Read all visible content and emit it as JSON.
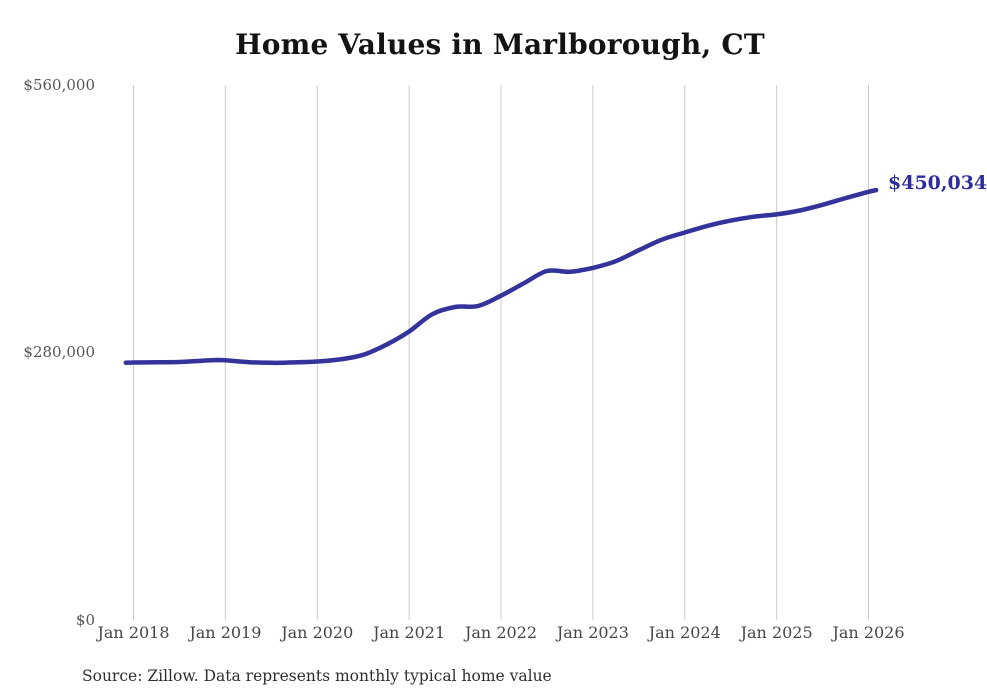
{
  "page": {
    "background_color": "#ffffff"
  },
  "chart_data": {
    "type": "line",
    "title": "Home Values in Marlborough, CT",
    "source_note": "Source: Zillow. Data represents monthly typical home value",
    "grid": "vertical-only",
    "grid_color": "#cbcbcb",
    "legend_position": "none",
    "y_axis": {
      "range": [
        0,
        560000
      ],
      "ticks": [
        {
          "label": "$0",
          "value": 0
        },
        {
          "label": "$280,000",
          "value": 280000
        },
        {
          "label": "$560,000",
          "value": 560000
        }
      ]
    },
    "x_axis": {
      "ticks": [
        "Jan 2018",
        "Jan 2019",
        "Jan 2020",
        "Jan 2021",
        "Jan 2022",
        "Jan 2023",
        "Jan 2024",
        "Jan 2025",
        "Jan 2026"
      ]
    },
    "end_label": "$450,034",
    "latest_value": 450034,
    "series": [
      {
        "name": "Typical home value",
        "color": "#33339b",
        "points": [
          {
            "month": "2017-12",
            "value": 269300
          },
          {
            "month": "2018-01",
            "value": 269500
          },
          {
            "month": "2018-04",
            "value": 269700
          },
          {
            "month": "2018-07",
            "value": 270100
          },
          {
            "month": "2018-10",
            "value": 271400
          },
          {
            "month": "2018-12",
            "value": 272100
          },
          {
            "month": "2019-01",
            "value": 271800
          },
          {
            "month": "2019-04",
            "value": 269900
          },
          {
            "month": "2019-07",
            "value": 269200
          },
          {
            "month": "2019-10",
            "value": 269600
          },
          {
            "month": "2020-01",
            "value": 270600
          },
          {
            "month": "2020-04",
            "value": 272800
          },
          {
            "month": "2020-07",
            "value": 277600
          },
          {
            "month": "2020-10",
            "value": 288100
          },
          {
            "month": "2021-01",
            "value": 302000
          },
          {
            "month": "2021-04",
            "value": 320000
          },
          {
            "month": "2021-07",
            "value": 327600
          },
          {
            "month": "2021-10",
            "value": 328700
          },
          {
            "month": "2022-01",
            "value": 339500
          },
          {
            "month": "2022-04",
            "value": 352500
          },
          {
            "month": "2022-07",
            "value": 365300
          },
          {
            "month": "2022-10",
            "value": 364500
          },
          {
            "month": "2023-01",
            "value": 368600
          },
          {
            "month": "2023-04",
            "value": 375600
          },
          {
            "month": "2023-07",
            "value": 387100
          },
          {
            "month": "2023-10",
            "value": 398100
          },
          {
            "month": "2024-01",
            "value": 405600
          },
          {
            "month": "2024-04",
            "value": 412600
          },
          {
            "month": "2024-07",
            "value": 418100
          },
          {
            "month": "2024-10",
            "value": 422100
          },
          {
            "month": "2025-01",
            "value": 424600
          },
          {
            "month": "2025-04",
            "value": 428600
          },
          {
            "month": "2025-07",
            "value": 434600
          },
          {
            "month": "2025-10",
            "value": 441600
          },
          {
            "month": "2026-01",
            "value": 448200
          },
          {
            "month": "2026-02",
            "value": 450034
          }
        ]
      }
    ]
  }
}
